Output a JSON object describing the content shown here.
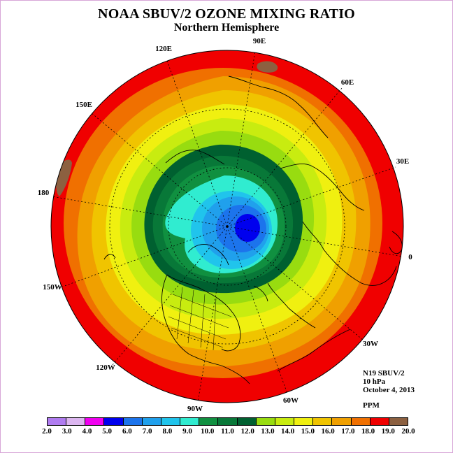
{
  "header": {
    "title": "NOAA SBUV/2 OZONE MIXING RATIO",
    "subtitle": "Northern Hemisphere"
  },
  "longitude_labels": [
    "90E",
    "60E",
    "30E",
    "0",
    "30W",
    "60W",
    "90W",
    "120W",
    "150W",
    "180",
    "150E",
    "120E"
  ],
  "info": {
    "satellite": "N19 SBUV/2",
    "level": "10 hPa",
    "date": "October 4, 2013",
    "units": "PPM"
  },
  "colorbar": {
    "colors": [
      "#b07cf0",
      "#dcb6f0",
      "#f000f0",
      "#0000ee",
      "#1c74ec",
      "#20a0ec",
      "#20c4ec",
      "#30ecd0",
      "#109040",
      "#087838",
      "#006030",
      "#98dc10",
      "#c8ec10",
      "#f0f010",
      "#f0c400",
      "#f0a000",
      "#f07000",
      "#f00000",
      "#8c6040"
    ],
    "labels": [
      "2.0",
      "3.0",
      "4.0",
      "5.0",
      "6.0",
      "7.0",
      "8.0",
      "9.0",
      "10.0",
      "11.0",
      "12.0",
      "13.0",
      "14.0",
      "15.0",
      "16.0",
      "17.0",
      "18.0",
      "19.0",
      "20.0"
    ]
  }
}
